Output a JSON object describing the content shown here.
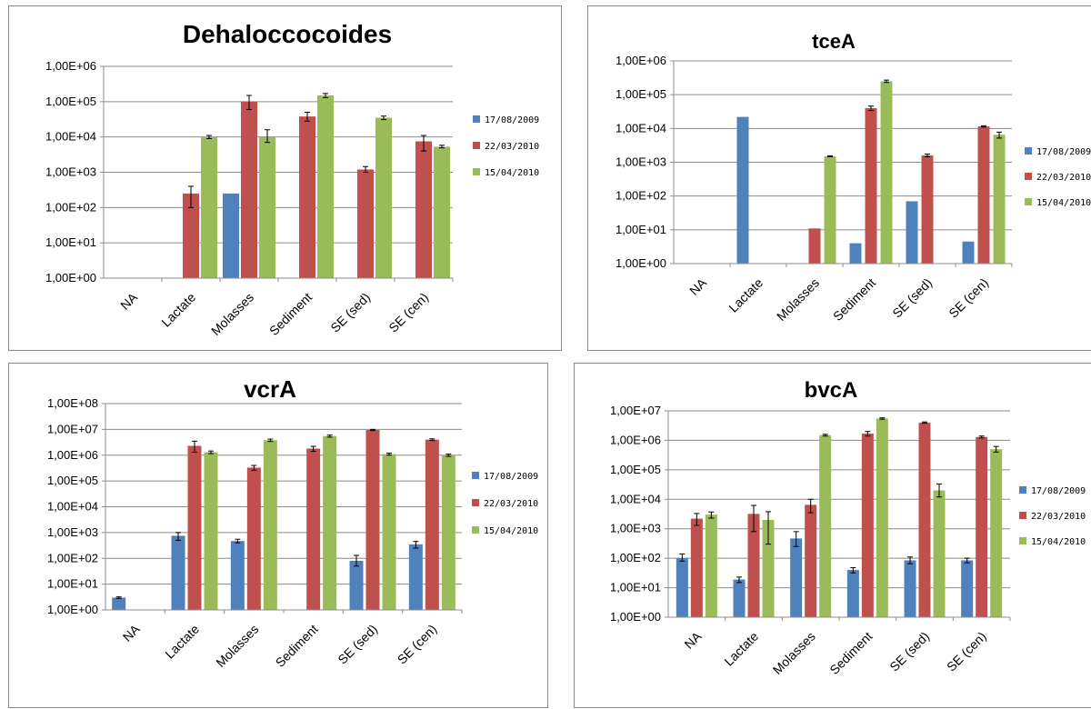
{
  "colors": {
    "series": [
      "#4f81bd",
      "#c0504d",
      "#9bbb59"
    ],
    "grid": "#8c8c8c",
    "axis": "#8c8c8c",
    "error": "#000000"
  },
  "chart_data": [
    {
      "type": "bar",
      "title": "Dehaloccocoides",
      "y_scale": "log",
      "ylim": [
        1,
        1000000
      ],
      "yticks": [
        "1,00E+00",
        "1,00E+01",
        "1,00E+02",
        "1,00E+03",
        "1,00E+04",
        "1,00E+05",
        "1,00E+06"
      ],
      "grid": true,
      "legend": "right",
      "categories": [
        "NA",
        "Lactate",
        "Molasses",
        "Sediment",
        "SE (sed)",
        "SE (cen)"
      ],
      "series": [
        {
          "name": "17/08/2009",
          "values": [
            null,
            null,
            250,
            null,
            null,
            null
          ],
          "errors": [
            null,
            null,
            null,
            null,
            null,
            null
          ]
        },
        {
          "name": "22/03/2010",
          "values": [
            null,
            250,
            100000,
            38000,
            1200,
            7500
          ],
          "errors": [
            null,
            [
              100,
              400
            ],
            [
              60000,
              150000
            ],
            [
              28000,
              50000
            ],
            [
              1000,
              1450
            ],
            [
              4000,
              11000
            ]
          ]
        },
        {
          "name": "15/04/2010",
          "values": [
            null,
            10000,
            10000,
            150000,
            35000,
            5300
          ],
          "errors": [
            null,
            [
              9000,
              11000
            ],
            [
              7000,
              16000
            ],
            [
              130000,
              170000
            ],
            [
              31000,
              39000
            ],
            [
              4900,
              5800
            ]
          ]
        }
      ]
    },
    {
      "type": "bar",
      "title": "tceA",
      "y_scale": "log",
      "ylim": [
        1,
        1000000
      ],
      "yticks": [
        "1,00E+00",
        "1,00E+01",
        "1,00E+02",
        "1,00E+03",
        "1,00E+04",
        "1,00E+05",
        "1,00E+06"
      ],
      "grid": true,
      "legend": "right",
      "categories": [
        "NA",
        "Lactate",
        "Molasses",
        "Sediment",
        "SE (sed)",
        "SE (cen)"
      ],
      "series": [
        {
          "name": "17/08/2009",
          "values": [
            null,
            22000,
            null,
            4,
            70,
            4.5
          ],
          "errors": [
            null,
            null,
            null,
            null,
            null,
            null
          ]
        },
        {
          "name": "22/03/2010",
          "values": [
            null,
            null,
            11,
            40000,
            1600,
            11500
          ],
          "errors": [
            null,
            null,
            null,
            [
              34000,
              46000
            ],
            [
              1450,
              1750
            ],
            [
              11000,
              12000
            ]
          ]
        },
        {
          "name": "15/04/2010",
          "values": [
            null,
            null,
            1500,
            250000,
            null,
            6500
          ],
          "errors": [
            null,
            null,
            [
              1450,
              1550
            ],
            [
              230000,
              270000
            ],
            null,
            [
              5200,
              7800
            ]
          ]
        }
      ]
    },
    {
      "type": "bar",
      "title": "vcrA",
      "y_scale": "log",
      "ylim": [
        1,
        100000000
      ],
      "yticks": [
        "1,00E+00",
        "1,00E+01",
        "1,00E+02",
        "1,00E+03",
        "1,00E+04",
        "1,00E+05",
        "1,00E+06",
        "1,00E+07",
        "1,00E+08"
      ],
      "grid": true,
      "legend": "right",
      "categories": [
        "NA",
        "Lactate",
        "Molasses",
        "Sediment",
        "SE (sed)",
        "SE (cen)"
      ],
      "series": [
        {
          "name": "17/08/2009",
          "values": [
            3,
            750,
            470,
            null,
            80,
            350
          ],
          "errors": [
            [
              2.8,
              3.2
            ],
            [
              500,
              1000
            ],
            [
              400,
              550
            ],
            null,
            [
              50,
              130
            ],
            [
              250,
              450
            ]
          ]
        },
        {
          "name": "22/03/2010",
          "values": [
            null,
            2300000,
            330000,
            1800000,
            9500000,
            4000000
          ],
          "errors": [
            null,
            [
              1300000,
              3500000
            ],
            [
              260000,
              400000
            ],
            [
              1400000,
              2200000
            ],
            [
              9000000,
              10000000
            ],
            [
              3700000,
              4300000
            ]
          ]
        },
        {
          "name": "15/04/2010",
          "values": [
            null,
            1300000,
            3800000,
            5500000,
            1100000,
            1000000
          ],
          "errors": [
            null,
            [
              1150000,
              1450000
            ],
            [
              3400000,
              4200000
            ],
            [
              5000000,
              6000000
            ],
            [
              1000000,
              1200000
            ],
            [
              900000,
              1100000
            ]
          ]
        }
      ]
    },
    {
      "type": "bar",
      "title": "bvcA",
      "y_scale": "log",
      "ylim": [
        1,
        10000000
      ],
      "yticks": [
        "1,00E+00",
        "1,00E+01",
        "1,00E+02",
        "1,00E+03",
        "1,00E+04",
        "1,00E+05",
        "1,00E+06",
        "1,00E+07"
      ],
      "grid": true,
      "legend": "right",
      "categories": [
        "NA",
        "Lactate",
        "Molasses",
        "Sediment",
        "SE (sed)",
        "SE (cen)"
      ],
      "series": [
        {
          "name": "17/08/2009",
          "values": [
            100,
            19,
            470,
            40,
            85,
            85
          ],
          "errors": [
            [
              80,
              140
            ],
            [
              15,
              23
            ],
            [
              250,
              800
            ],
            [
              32,
              48
            ],
            [
              65,
              110
            ],
            [
              70,
              100
            ]
          ]
        },
        {
          "name": "22/03/2010",
          "values": [
            2200,
            3200,
            6500,
            1700000,
            4000000,
            1300000
          ],
          "errors": [
            [
              1300,
              3300
            ],
            [
              800,
              6200
            ],
            [
              3500,
              10000
            ],
            [
              1400000,
              2000000
            ],
            [
              3800000,
              4200000
            ],
            [
              1200000,
              1400000
            ]
          ]
        },
        {
          "name": "15/04/2010",
          "values": [
            3000,
            2000,
            1500000,
            5500000,
            20000,
            500000
          ],
          "errors": [
            [
              2300,
              3700
            ],
            [
              300,
              3800
            ],
            [
              1400000,
              1600000
            ],
            [
              5200000,
              5800000
            ],
            [
              12000,
              33000
            ],
            [
              400000,
              620000
            ]
          ]
        }
      ]
    }
  ]
}
